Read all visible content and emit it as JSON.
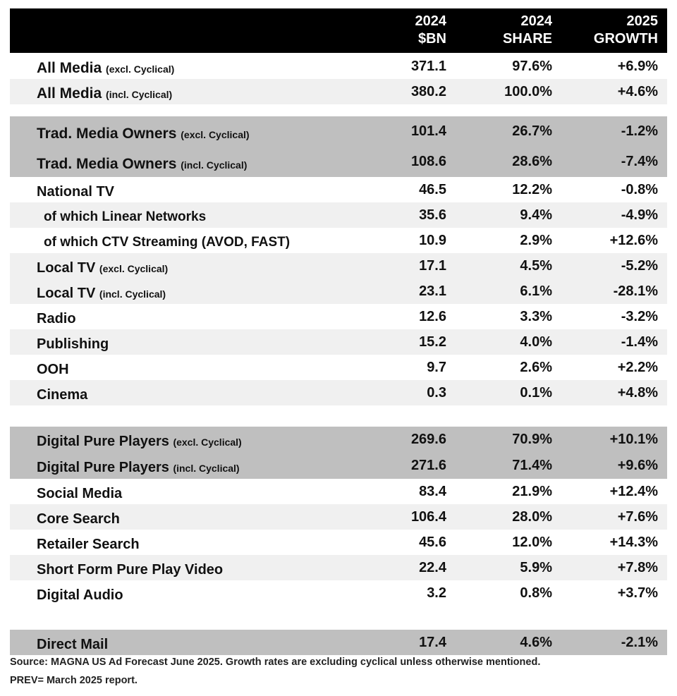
{
  "header": {
    "col1": [
      "2024",
      "$BN"
    ],
    "col2": [
      "2024",
      "SHARE"
    ],
    "col3": [
      "2025",
      "GROWTH"
    ]
  },
  "colors": {
    "header_bg": "#000000",
    "section_bg": "#bfbfbf",
    "alt_row_bg": "#f0f0f0"
  },
  "rows": [
    {
      "label": "All Media",
      "qualifier": "(excl. Cyclical)",
      "bn": "371.1",
      "share": "97.6%",
      "growth": "+6.9%",
      "style": "heavy",
      "shade": "none"
    },
    {
      "label": "All Media",
      "qualifier": "(incl. Cyclical)",
      "bn": "380.2",
      "share": "100.0%",
      "growth": "+4.6%",
      "style": "heavy",
      "shade": "light"
    },
    {
      "label": "Trad. Media Owners",
      "qualifier": "(excl. Cyclical)",
      "bn": "101.4",
      "share": "26.7%",
      "growth": "-1.2%",
      "style": "heavy",
      "shade": "dark"
    },
    {
      "label": "Trad. Media Owners",
      "qualifier": "(incl. Cyclical)",
      "bn": "108.6",
      "share": "28.6%",
      "growth": "-7.4%",
      "style": "heavy",
      "shade": "dark"
    },
    {
      "label": "National TV",
      "qualifier": "",
      "bn": "46.5",
      "share": "12.2%",
      "growth": "-0.8%",
      "style": "normal",
      "shade": "none"
    },
    {
      "label": "of which Linear Networks",
      "qualifier": "",
      "bn": "35.6",
      "share": "9.4%",
      "growth": "-4.9%",
      "style": "sub",
      "shade": "light"
    },
    {
      "label": "of which CTV Streaming (AVOD, FAST)",
      "qualifier": "",
      "bn": "10.9",
      "share": "2.9%",
      "growth": "+12.6%",
      "style": "sub",
      "shade": "none"
    },
    {
      "label": "Local TV",
      "qualifier": "(excl. Cyclical)",
      "bn": "17.1",
      "share": "4.5%",
      "growth": "-5.2%",
      "style": "normal",
      "shade": "light"
    },
    {
      "label": "Local TV",
      "qualifier": "(incl. Cyclical)",
      "bn": "23.1",
      "share": "6.1%",
      "growth": "-28.1%",
      "style": "normal",
      "shade": "light"
    },
    {
      "label": "Radio",
      "qualifier": "",
      "bn": "12.6",
      "share": "3.3%",
      "growth": "-3.2%",
      "style": "normal",
      "shade": "none"
    },
    {
      "label": "Publishing",
      "qualifier": "",
      "bn": "15.2",
      "share": "4.0%",
      "growth": "-1.4%",
      "style": "normal",
      "shade": "light"
    },
    {
      "label": "OOH",
      "qualifier": "",
      "bn": "9.7",
      "share": "2.6%",
      "growth": "+2.2%",
      "style": "normal",
      "shade": "none"
    },
    {
      "label": "Cinema",
      "qualifier": "",
      "bn": "0.3",
      "share": "0.1%",
      "growth": "+4.8%",
      "style": "normal",
      "shade": "light"
    },
    {
      "label": "Digital Pure Players",
      "qualifier": "(excl. Cyclical)",
      "bn": "269.6",
      "share": "70.9%",
      "growth": "+10.1%",
      "style": "normal",
      "shade": "dark"
    },
    {
      "label": "Digital Pure Players",
      "qualifier": "(incl. Cyclical)",
      "bn": "271.6",
      "share": "71.4%",
      "growth": "+9.6%",
      "style": "normal",
      "shade": "dark"
    },
    {
      "label": "Social Media",
      "qualifier": "",
      "bn": "83.4",
      "share": "21.9%",
      "growth": "+12.4%",
      "style": "normal",
      "shade": "none"
    },
    {
      "label": "Core Search",
      "qualifier": "",
      "bn": "106.4",
      "share": "28.0%",
      "growth": "+7.6%",
      "style": "normal",
      "shade": "light"
    },
    {
      "label": "Retailer Search",
      "qualifier": "",
      "bn": "45.6",
      "share": "12.0%",
      "growth": "+14.3%",
      "style": "normal",
      "shade": "none"
    },
    {
      "label": "Short Form Pure Play Video",
      "qualifier": "",
      "bn": "22.4",
      "share": "5.9%",
      "growth": "+7.8%",
      "style": "normal",
      "shade": "light"
    },
    {
      "label": "Digital Audio",
      "qualifier": "",
      "bn": "3.2",
      "share": "0.8%",
      "growth": "+3.7%",
      "style": "normal",
      "shade": "none"
    },
    {
      "label": "Direct Mail",
      "qualifier": "",
      "bn": "17.4",
      "share": "4.6%",
      "growth": "-2.1%",
      "style": "normal",
      "shade": "dark"
    }
  ],
  "footnote": {
    "line1": "Source: MAGNA US Ad Forecast June 2025. Growth rates are excluding cyclical unless otherwise mentioned.",
    "line2": "PREV= March 2025 report."
  }
}
